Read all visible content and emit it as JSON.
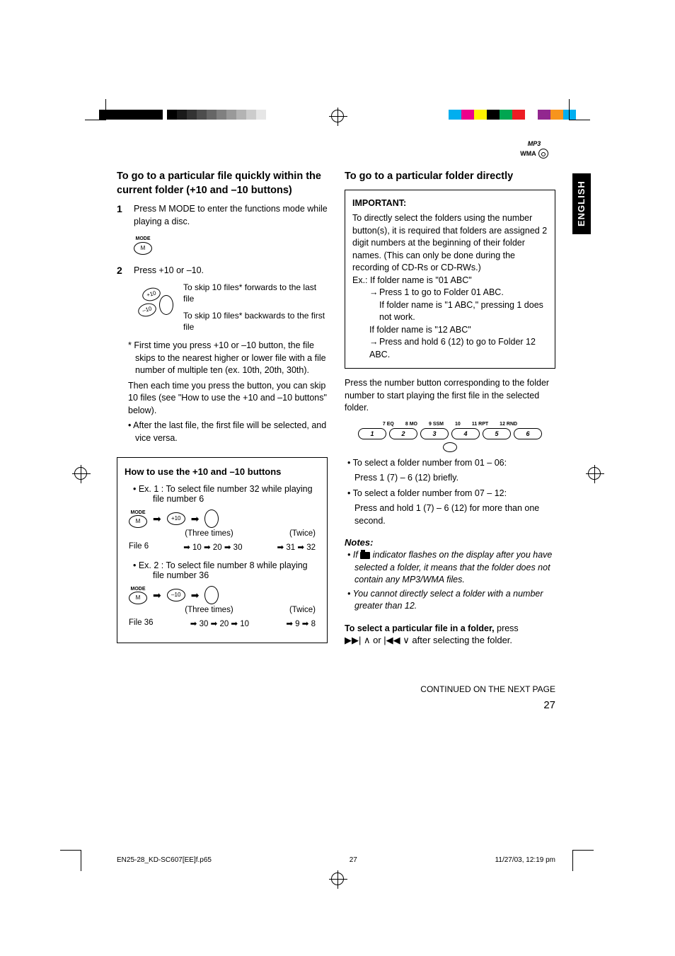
{
  "print_marks": {
    "gradient": [
      "#000000",
      "#1a1a1a",
      "#333333",
      "#4d4d4d",
      "#666666",
      "#808080",
      "#999999",
      "#b3b3b3",
      "#cccccc",
      "#e6e6e6"
    ],
    "colors": [
      "#00aeef",
      "#ec008c",
      "#fff200",
      "#000000",
      "#00a651",
      "#ed1c24",
      "#ffffff",
      "#92278f",
      "#f7941d",
      "#00aeef"
    ]
  },
  "logo": {
    "mp3": "MP3",
    "wma": "WMA"
  },
  "lang_tab": "ENGLISH",
  "left": {
    "title": "To go to a particular file quickly within the current folder (+10 and –10 buttons)",
    "step1_num": "1",
    "step1_text": "Press M MODE to enter the functions mode while playing a disc.",
    "mode_label": "MODE",
    "mode_btn": "M",
    "step2_num": "2",
    "step2_text": "Press +10 or –10.",
    "plus10_btn": "+10",
    "minus10_btn": "–10",
    "skip_fwd": "To skip 10 files* forwards to the last file",
    "skip_bwd": "To skip 10 files* backwards to the first file",
    "star_note": "* First time you press +10 or –10 button, the file skips to the nearest higher or lower file with a file number of multiple ten (ex. 10th, 20th, 30th).",
    "then_note": "Then each time you press the button, you can skip 10 files (see \"How to use the +10 and –10 buttons\" below).",
    "after_note": "• After the last file, the first file will be selected, and vice versa.",
    "how_title": "How to use the +10 and –10 buttons",
    "ex1": "• Ex. 1 : To select file number 32 while playing file number 6",
    "three_times": "(Three times)",
    "twice": "(Twice)",
    "ex1_seq_l": "File 6",
    "ex1_seq_m": "➡ 10 ➡ 20 ➡ 30",
    "ex1_seq_r": "➡ 31 ➡ 32",
    "ex2": "• Ex. 2 : To select file number 8 while playing file number 36",
    "ex2_seq_l": "File 36",
    "ex2_seq_m": "➡ 30 ➡ 20 ➡ 10",
    "ex2_seq_r": "➡ 9 ➡ 8"
  },
  "right": {
    "title": "To go to a particular folder directly",
    "imp_title": "IMPORTANT:",
    "imp_body": "To directly select the folders using the number button(s), it is required that folders are assigned 2 digit numbers at the beginning of their folder names. (This can only be done during the recording of CD-Rs or CD-RWs.)",
    "ex_label": "Ex.: If folder name is \"01 ABC\"",
    "ex_line1": "Press 1 to go to Folder 01 ABC.",
    "ex_line2": "If folder name is \"1 ABC,\" pressing 1 does not work.",
    "ex_line3": "If folder name is \"12 ABC\"",
    "ex_line4": "Press and hold 6 (12) to go to Folder 12 ABC.",
    "press_text": "Press the number button corresponding to the folder number to start playing the first file in the selected folder.",
    "num_labels": [
      "7 EQ",
      "8 MO",
      "9 SSM",
      "10",
      "11 RPT",
      "12 RND"
    ],
    "num_btns": [
      "1",
      "2",
      "3",
      "4",
      "5",
      "6"
    ],
    "select1": "• To select a folder number from 01 – 06:",
    "select1b": "Press 1 (7) – 6 (12) briefly.",
    "select2": "• To select a folder number from 07 – 12:",
    "select2b": "Press and hold 1 (7) – 6 (12) for more than one second.",
    "notes_title": "Notes:",
    "note1a": "• If ",
    "note1b": " indicator flashes on the display after you have selected a folder, it means that the folder does not contain any MP3/WMA files.",
    "note2": "• You cannot directly select a folder with a number greater than 12.",
    "select_file_bold": "To select a particular file in a folder,",
    "select_file_rest": " press",
    "media_line": "▶▶| ∧ or |◀◀ ∨ after selecting the folder."
  },
  "continued": "CONTINUED ON THE NEXT PAGE",
  "page_num": "27",
  "footer": {
    "filename": "EN25-28_KD-SC607[EE]f.p65",
    "page": "27",
    "timestamp": "11/27/03, 12:19 pm"
  }
}
